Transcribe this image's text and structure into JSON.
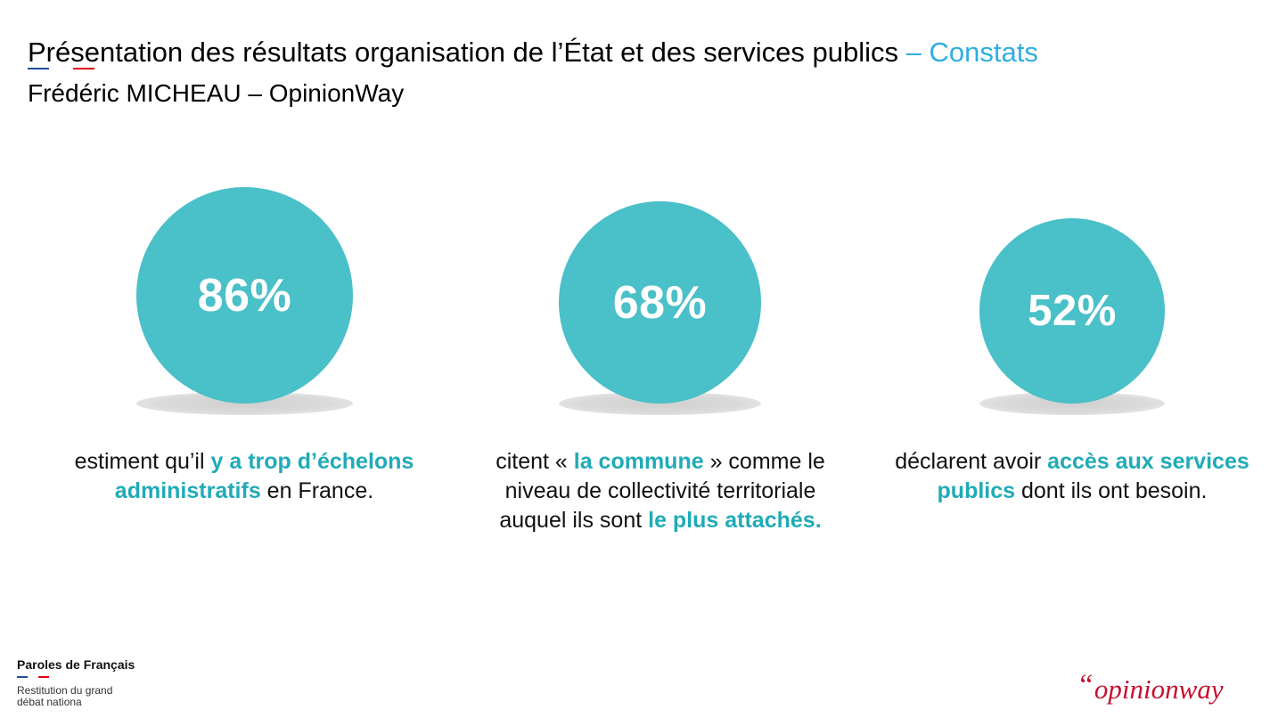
{
  "header": {
    "title_main": "Présentation des résultats organisation de l’État et des services publics",
    "title_accent": "– Constats",
    "subtitle": "Frédéric MICHEAU – OpinionWay"
  },
  "stats": [
    {
      "value": "86%",
      "caption": [
        {
          "text": "estiment qu’il ",
          "hl": false
        },
        {
          "text": "y a trop d’échelons administratifs",
          "hl": true
        },
        {
          "text": " en France.",
          "hl": false
        }
      ]
    },
    {
      "value": "68%",
      "caption": [
        {
          "text": "citent « ",
          "hl": false
        },
        {
          "text": "la commune",
          "hl": true
        },
        {
          "text": " » comme le niveau de collectivité territoriale auquel ils sont ",
          "hl": false
        },
        {
          "text": "le plus attachés.",
          "hl": true
        }
      ]
    },
    {
      "value": "52%",
      "caption": [
        {
          "text": "déclarent avoir ",
          "hl": false
        },
        {
          "text": "accès aux services publics",
          "hl": true
        },
        {
          "text": " dont ils ont besoin.",
          "hl": false
        }
      ]
    }
  ],
  "footer": {
    "brand_name": "Paroles de Français",
    "brand_sub": "Restitution du grand débat nationa",
    "logo_text": "opinion",
    "logo_accent": "way",
    "logo_quote": "“"
  },
  "colors": {
    "circle": "#4ac0c8",
    "highlight": "#20abb7",
    "title_accent": "#2eaee0",
    "flag_blue": "#1f4e9c",
    "flag_red": "#e1000f",
    "logo": "#c6102e"
  }
}
